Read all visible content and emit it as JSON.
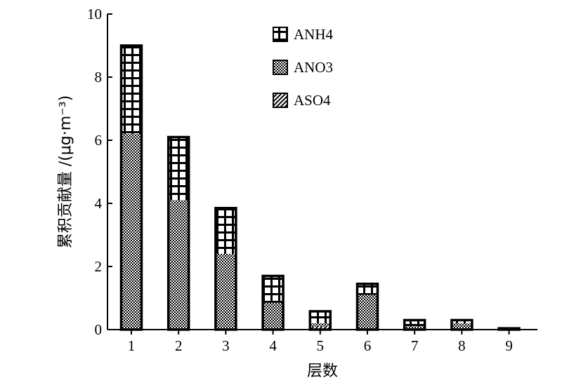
{
  "chart_data": {
    "type": "bar",
    "stacked": true,
    "categories": [
      "1",
      "2",
      "3",
      "4",
      "5",
      "6",
      "7",
      "8",
      "9"
    ],
    "series": [
      {
        "name": "ASO4",
        "pattern": "diagonal-hatch",
        "values": [
          0.0,
          0.0,
          0.0,
          0.0,
          0.1,
          0.0,
          0.0,
          0.0,
          0.0
        ]
      },
      {
        "name": "ANO3",
        "pattern": "dotted",
        "values": [
          6.2,
          4.1,
          2.4,
          0.85,
          0.1,
          1.1,
          0.1,
          0.2,
          0.02
        ]
      },
      {
        "name": "ANH4",
        "pattern": "grid",
        "values": [
          2.8,
          2.0,
          1.45,
          0.85,
          0.38,
          0.35,
          0.2,
          0.1,
          0.02
        ]
      }
    ],
    "xlabel": "层数",
    "ylabel": "累积贡献量 /(μg·m⁻³)",
    "ylim": [
      0,
      10
    ],
    "yticks": [
      "0",
      "2",
      "4",
      "6",
      "8",
      "10"
    ],
    "legend_position": "top-right",
    "grid": false,
    "colors": {
      "ink": "#000000",
      "background": "#ffffff"
    }
  }
}
